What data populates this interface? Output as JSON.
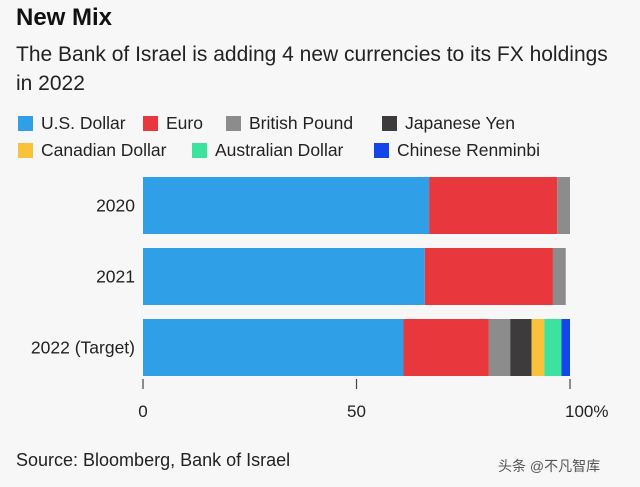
{
  "header": {
    "title": "New Mix",
    "subtitle": "The Bank of Israel is adding 4 new currencies to its FX holdings in 2022"
  },
  "source": "Source: Bloomberg, Bank of Israel",
  "watermark": "头条 @不凡智库",
  "chart_data": {
    "type": "bar",
    "orientation": "horizontal",
    "stacked": true,
    "title": "New Mix",
    "subtitle": "The Bank of Israel is adding 4 new currencies to its FX holdings in 2022",
    "categories": [
      "2020",
      "2021",
      "2022 (Target)"
    ],
    "series": [
      {
        "name": "U.S. Dollar",
        "color": "#2f9fe8",
        "values": [
          67,
          66,
          61
        ]
      },
      {
        "name": "Euro",
        "color": "#e8383d",
        "values": [
          30,
          30,
          20
        ]
      },
      {
        "name": "British Pound",
        "color": "#8c8c8c",
        "values": [
          3,
          3,
          5
        ]
      },
      {
        "name": "Japanese Yen",
        "color": "#3d3b3b",
        "values": [
          0,
          0,
          5
        ]
      },
      {
        "name": "Canadian Dollar",
        "color": "#f8c33a",
        "values": [
          0,
          0,
          3
        ]
      },
      {
        "name": "Australian Dollar",
        "color": "#3be39e",
        "values": [
          0,
          0,
          4
        ]
      },
      {
        "name": "Chinese Renminbi",
        "color": "#1346e6",
        "values": [
          0,
          0,
          2
        ]
      }
    ],
    "xlim": [
      0,
      100
    ],
    "xticks": [
      "0",
      "50",
      "100%"
    ],
    "xtick_values": [
      0,
      50,
      100
    ],
    "legend_position": "top",
    "grid": false
  }
}
